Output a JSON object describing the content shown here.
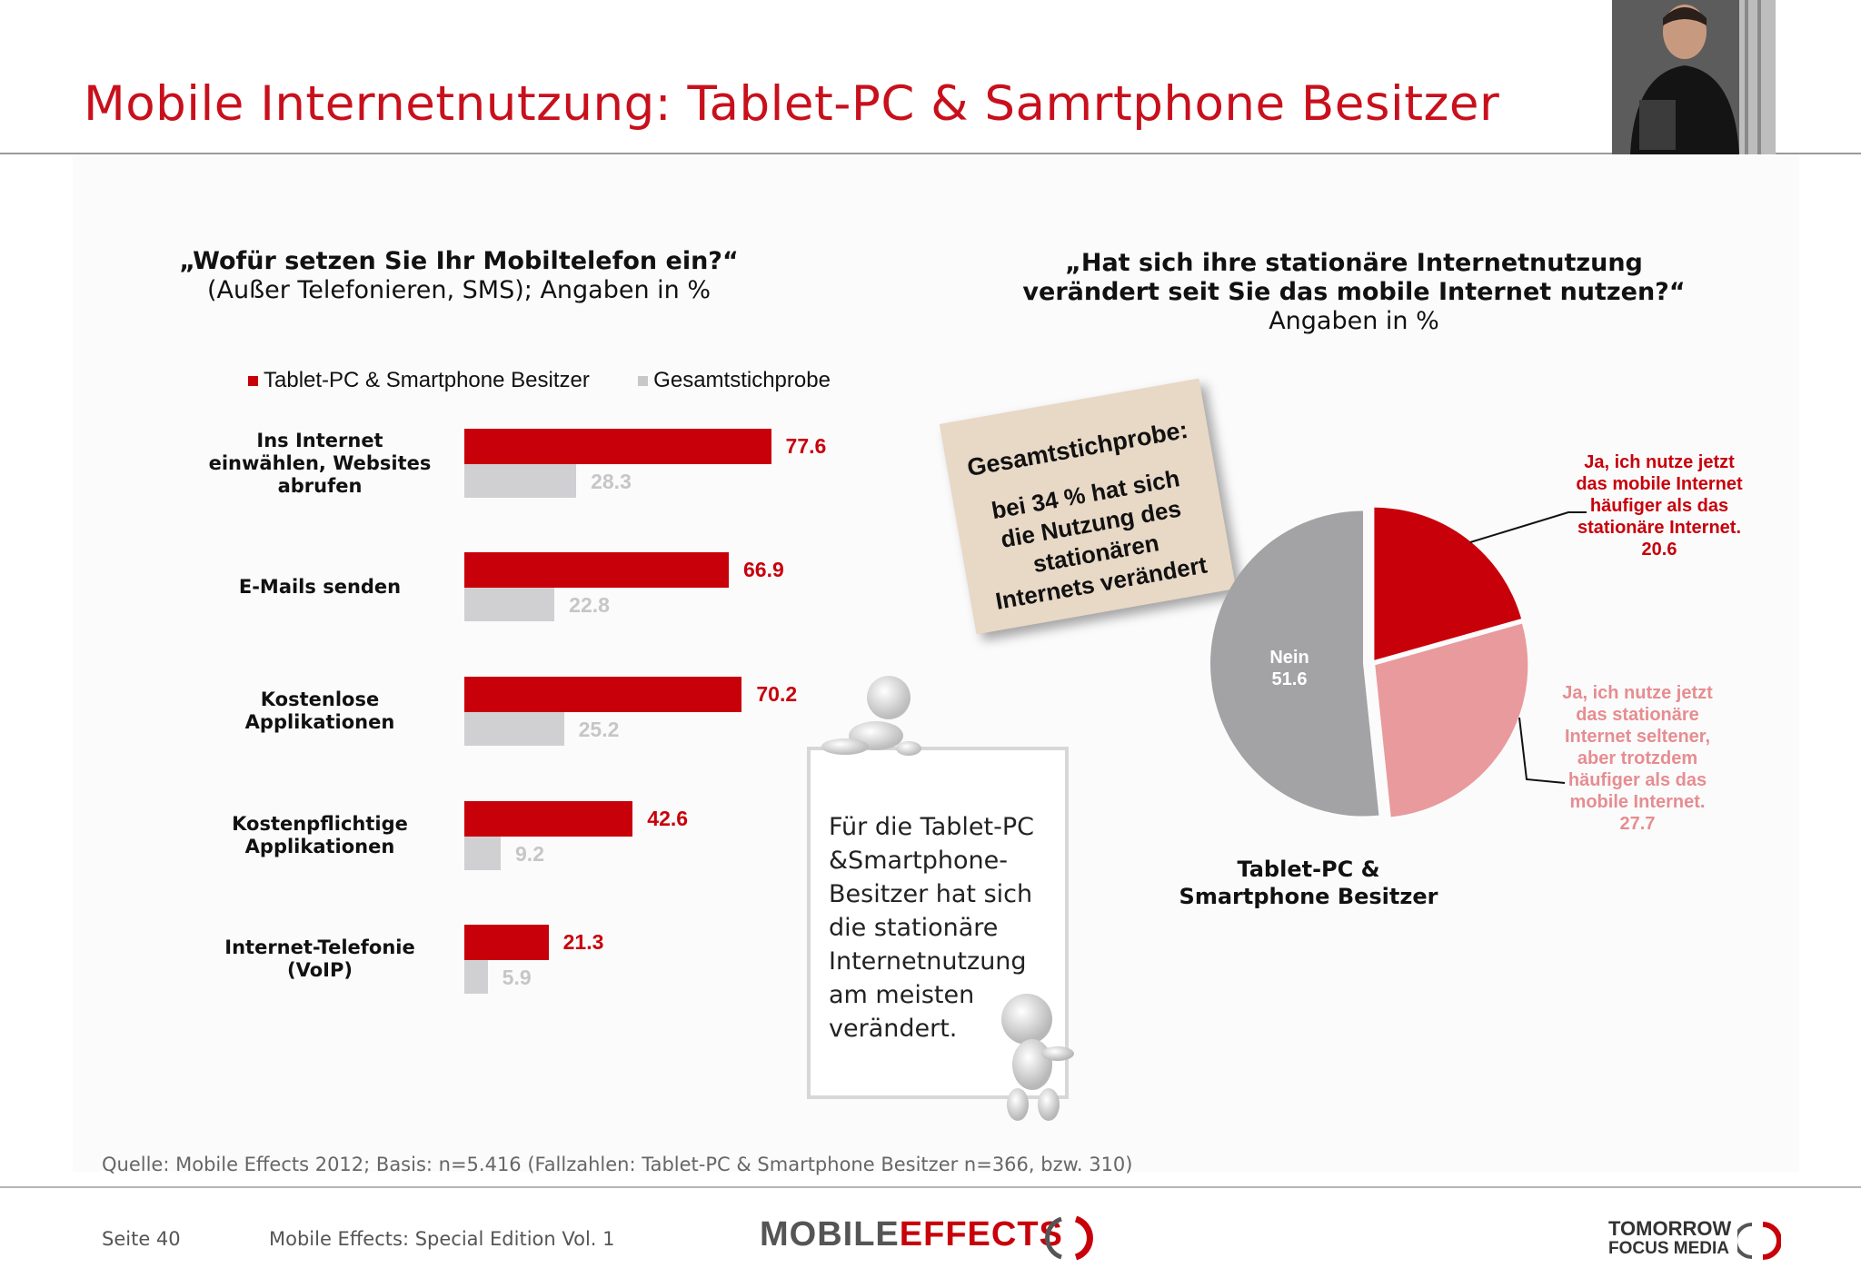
{
  "title": "Mobile Internetnutzung: Tablet-PC & Samrtphone Besitzer",
  "left_question": {
    "line1": "„Wofür setzen Sie Ihr Mobiltelefon ein?“",
    "line2": "(Außer Telefonieren, SMS); Angaben in %"
  },
  "legend": {
    "series1": "Tablet-PC & Smartphone Besitzer",
    "series2": "Gesamtstichprobe"
  },
  "right_question": {
    "line1": "„Hat sich ihre stationäre Internetnutzung",
    "line2": "verändert seit Sie das mobile Internet nutzen?“",
    "line3": "Angaben in %"
  },
  "note_card": {
    "heading": "Gesamtstichprobe:",
    "text": "bei 34 % hat sich die Nutzung des stationären Internets verändert"
  },
  "frame_text": "Für die Tablet-PC &Smartphone-Besitzer hat sich die stationäre Internetnutzung am meisten verändert.",
  "pie_caption": {
    "line1": "Tablet-PC &",
    "line2": "Smartphone Besitzer"
  },
  "pie_labels": {
    "nein_name": "Nein",
    "nein_value": "51.6",
    "mobile_text": "Ja, ich nutze jetzt das mobile Internet häufiger als das stationäre Internet.",
    "mobile_value": "20.6",
    "stationary_text": "Ja, ich nutze jetzt das stationäre Internet seltener, aber trotzdem häufiger als das mobile Internet.",
    "stationary_value": "27.7"
  },
  "footer": {
    "source": "Quelle: Mobile Effects 2012; Basis: n=5.416 (Fallzahlen: Tablet-PC  & Smartphone Besitzer n=366, bzw. 310)",
    "page": "Seite 40",
    "edition": "Mobile Effects: Special Edition Vol. 1",
    "logo_mobile": "MOBILE",
    "logo_effects": "EFFECTS",
    "logo_tomorrow": "TOMORROW",
    "logo_focus": "FOCUS MEDIA"
  },
  "colors": {
    "title_red": "#c8101c",
    "bar_red": "#c8000a",
    "bar_grey": "#d0d0d3",
    "pie_red": "#c8000a",
    "pie_pink": "#e89a9c",
    "pie_grey": "#a3a3a5"
  },
  "chart_data": [
    {
      "type": "bar",
      "orientation": "horizontal",
      "title": "„Wofür setzen Sie Ihr Mobiltelefon ein?“",
      "subtitle": "(Außer Telefonieren, SMS); Angaben in %",
      "categories": [
        "Ins Internet einwählen, Websites abrufen",
        "E-Mails senden",
        "Kostenlose Applikationen",
        "Kostenpflichtige Applikationen",
        "Internet-Telefonie (VoIP)"
      ],
      "series": [
        {
          "name": "Tablet-PC & Smartphone Besitzer",
          "values": [
            77.6,
            66.9,
            70.2,
            42.6,
            21.3
          ]
        },
        {
          "name": "Gesamtstichprobe",
          "values": [
            28.3,
            22.8,
            25.2,
            9.2,
            5.9
          ]
        }
      ],
      "value_labels": [
        [
          "77.6",
          "66.9",
          "70.2",
          "42.6",
          "21.3"
        ],
        [
          "28.3",
          "22.8",
          "25.2",
          "9.2",
          "5.9"
        ]
      ],
      "legend": "top",
      "grid": false
    },
    {
      "type": "pie",
      "title": "„Hat sich ihre stationäre Internetnutzung verändert seit Sie das mobile Internet nutzen?“",
      "subtitle": "Angaben in %",
      "caption": "Tablet-PC & Smartphone Besitzer",
      "slices": [
        {
          "label": "Ja, ich nutze jetzt das mobile Internet häufiger als das stationäre Internet.",
          "value": 20.6
        },
        {
          "label": "Ja, ich nutze jetzt das stationäre Internet seltener, aber trotzdem häufiger als das mobile Internet.",
          "value": 27.7
        },
        {
          "label": "Nein",
          "value": 51.6
        }
      ]
    }
  ]
}
